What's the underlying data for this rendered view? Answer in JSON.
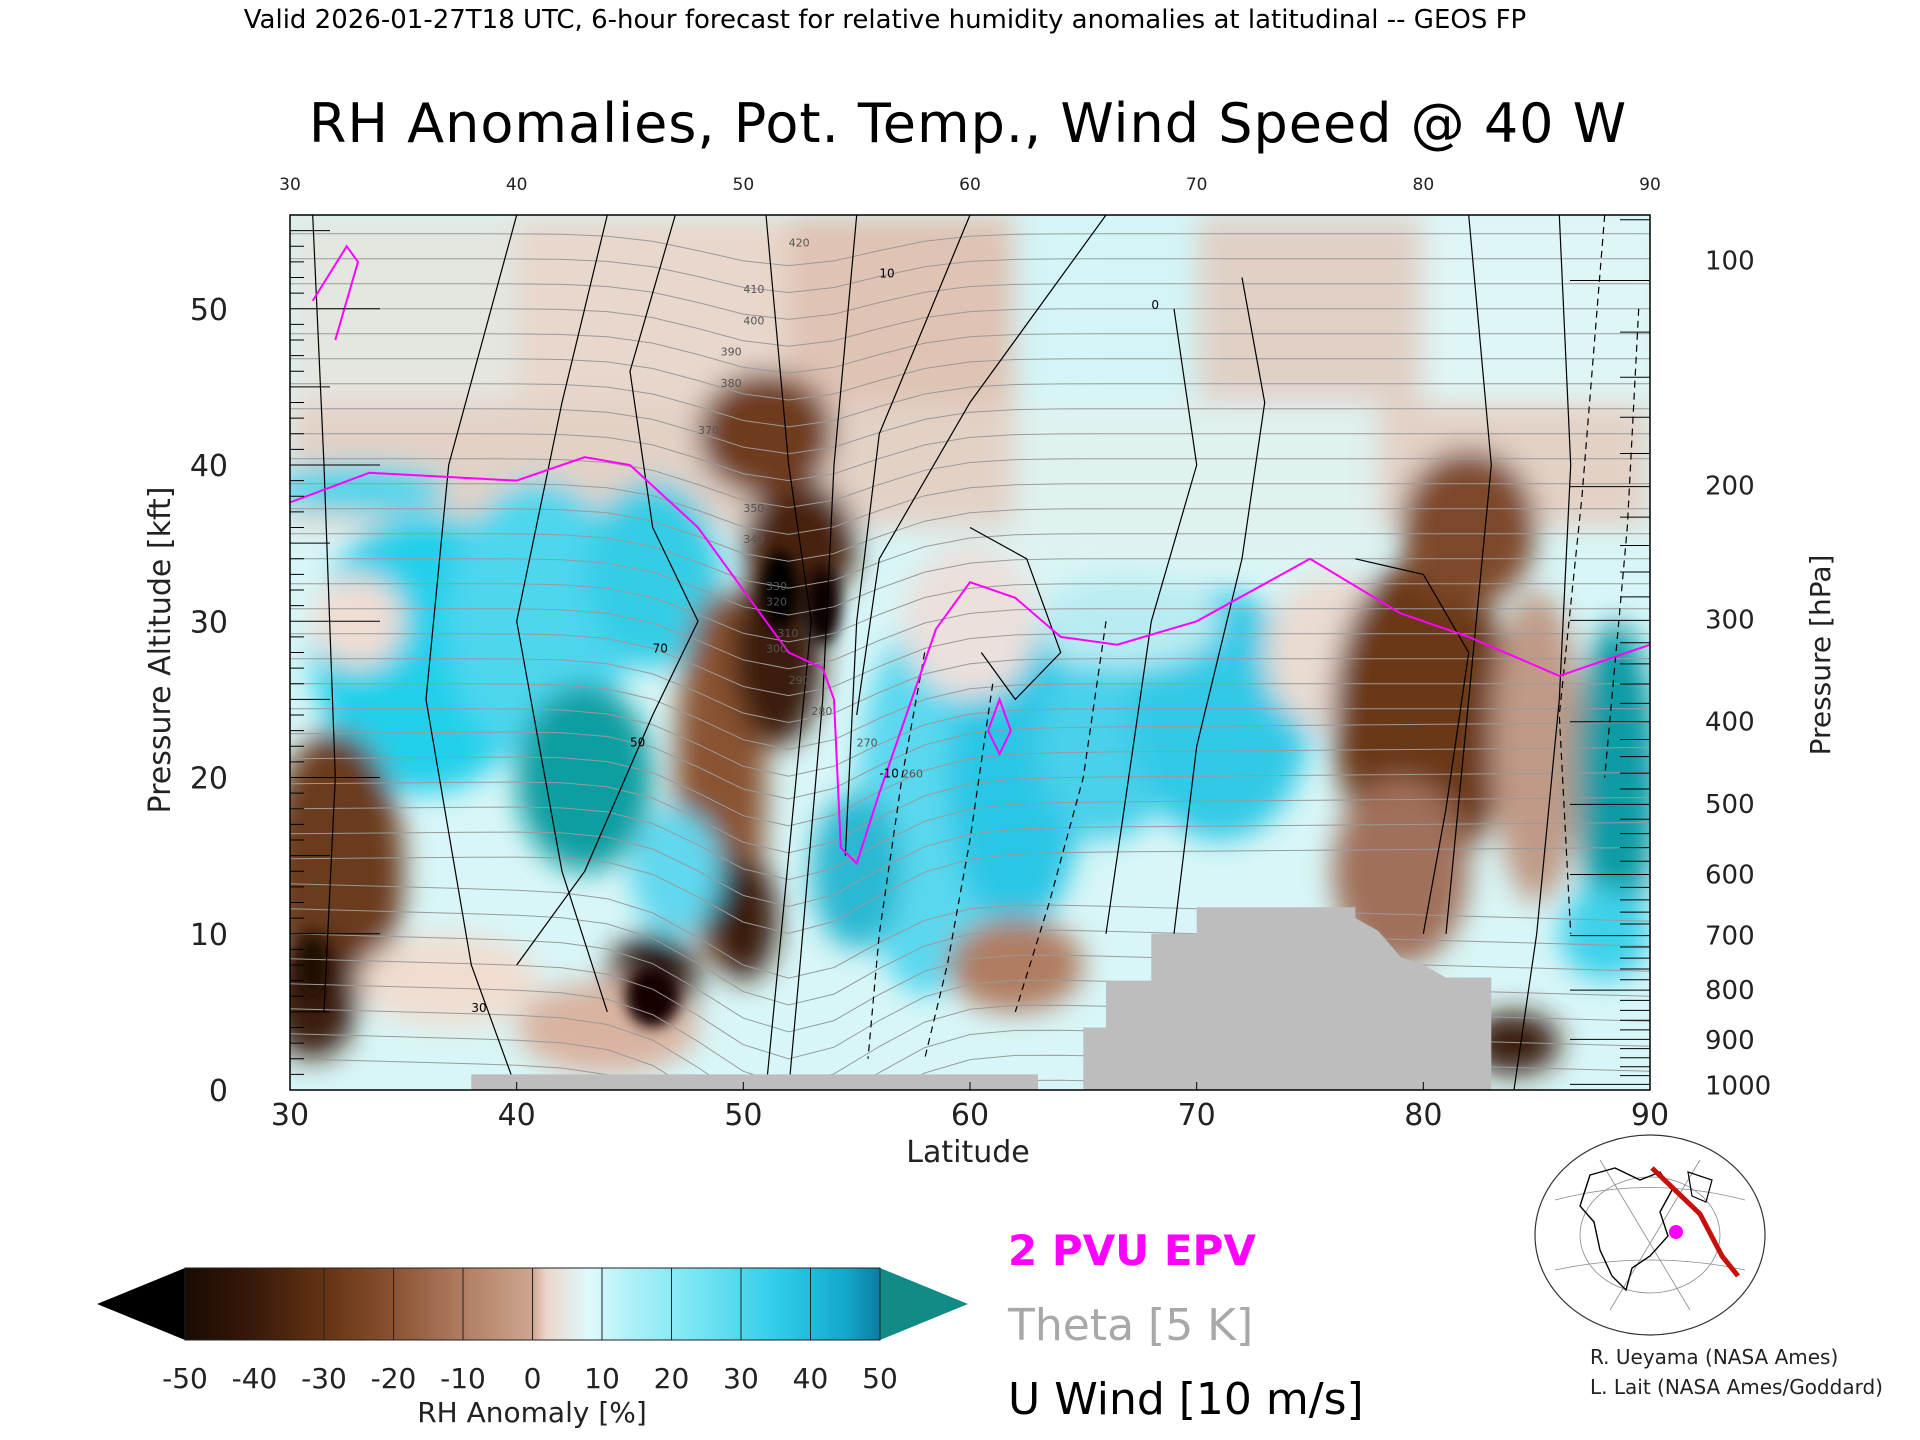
{
  "header": "Valid 2026-01-27T18 UTC, 6-hour forecast for relative humidity anomalies at latitudinal -- GEOS FP",
  "chart_data": {
    "type": "heatmap",
    "title": "RH Anomalies, Pot. Temp., Wind Speed @ 40 W",
    "xlabel": "Latitude",
    "ylabel_left": "Pressure Altitude [kft]",
    "ylabel_right": "Pressure [hPa]",
    "xlim": [
      30,
      90
    ],
    "ylim": [
      0,
      56
    ],
    "x_ticks": [
      "30",
      "40",
      "50",
      "60",
      "70",
      "80",
      "90"
    ],
    "x_ticks_top": [
      "30",
      "40",
      "50",
      "60",
      "70",
      "80",
      "90"
    ],
    "y_ticks_left": [
      0,
      10,
      20,
      30,
      40,
      50
    ],
    "y_ticks_right": [
      {
        "label": "100",
        "kft": 53.1
      },
      {
        "label": "200",
        "kft": 38.7
      },
      {
        "label": "300",
        "kft": 30.1
      },
      {
        "label": "400",
        "kft": 23.6
      },
      {
        "label": "500",
        "kft": 18.3
      },
      {
        "label": "600",
        "kft": 13.8
      },
      {
        "label": "700",
        "kft": 9.9
      },
      {
        "label": "800",
        "kft": 6.4
      },
      {
        "label": "900",
        "kft": 3.2
      },
      {
        "label": "1000",
        "kft": 0.3
      }
    ],
    "colorbar": {
      "label": "RH Anomaly [%]",
      "ticks": [
        "-50",
        "-40",
        "-30",
        "-20",
        "-10",
        "0",
        "10",
        "20",
        "30",
        "40",
        "50"
      ],
      "colors": [
        "#000000",
        "#3a1a0a",
        "#643314",
        "#8a5232",
        "#b07d62",
        "#cda189",
        "#ebd6cc",
        "#dff9fc",
        "#a8f0f8",
        "#6fe3f2",
        "#30cde9",
        "#12a9cc",
        "#0e8797",
        "#11847f"
      ]
    },
    "legend": [
      {
        "label": "2 PVU EPV",
        "color": "#ff00ff"
      },
      {
        "label": "Theta [5 K]",
        "color": "#a8a8a8"
      },
      {
        "label": "U Wind [10 m/s]",
        "color": "#000000"
      }
    ],
    "contour_labels": {
      "theta": [
        "420",
        "410",
        "400",
        "390",
        "380",
        "370",
        "350",
        "340",
        "330",
        "320",
        "310",
        "300",
        "290",
        "280",
        "270",
        "260"
      ],
      "wind": [
        "30",
        "10",
        "70",
        "50",
        "0",
        "-10"
      ]
    },
    "epv_2pvu": [
      [
        30,
        37.6
      ],
      [
        33.5,
        39.5
      ],
      [
        40,
        39
      ],
      [
        43,
        40.5
      ],
      [
        45,
        40
      ],
      [
        48,
        36
      ],
      [
        51,
        30
      ],
      [
        52,
        28
      ],
      [
        53.5,
        27
      ],
      [
        54,
        25
      ],
      [
        54.3,
        15.5
      ],
      [
        55,
        14.5
      ],
      [
        56,
        19
      ],
      [
        58.5,
        29.5
      ],
      [
        60,
        32.5
      ],
      [
        62,
        31.5
      ],
      [
        64,
        29
      ],
      [
        66.5,
        28.5
      ],
      [
        70,
        30
      ],
      [
        75,
        34
      ],
      [
        79,
        30.5
      ],
      [
        82,
        29
      ],
      [
        86,
        26.5
      ],
      [
        90,
        28.5
      ]
    ],
    "terrain": [
      [
        38,
        0
      ],
      [
        38,
        1
      ],
      [
        63,
        1
      ],
      [
        63,
        0
      ],
      [
        65,
        0
      ],
      [
        65,
        4
      ],
      [
        66,
        4
      ],
      [
        66,
        7
      ],
      [
        68,
        7
      ],
      [
        68,
        10
      ],
      [
        70,
        10
      ],
      [
        70,
        11.7
      ],
      [
        77,
        11.7
      ],
      [
        77,
        11
      ],
      [
        78,
        10.2
      ],
      [
        79,
        8.5
      ],
      [
        80,
        8
      ],
      [
        81,
        7.2
      ],
      [
        83,
        7.2
      ],
      [
        83,
        0
      ]
    ],
    "credits": [
      "R. Ueyama (NASA Ames)",
      "L. Lait (NASA Ames/Goddard)"
    ]
  }
}
